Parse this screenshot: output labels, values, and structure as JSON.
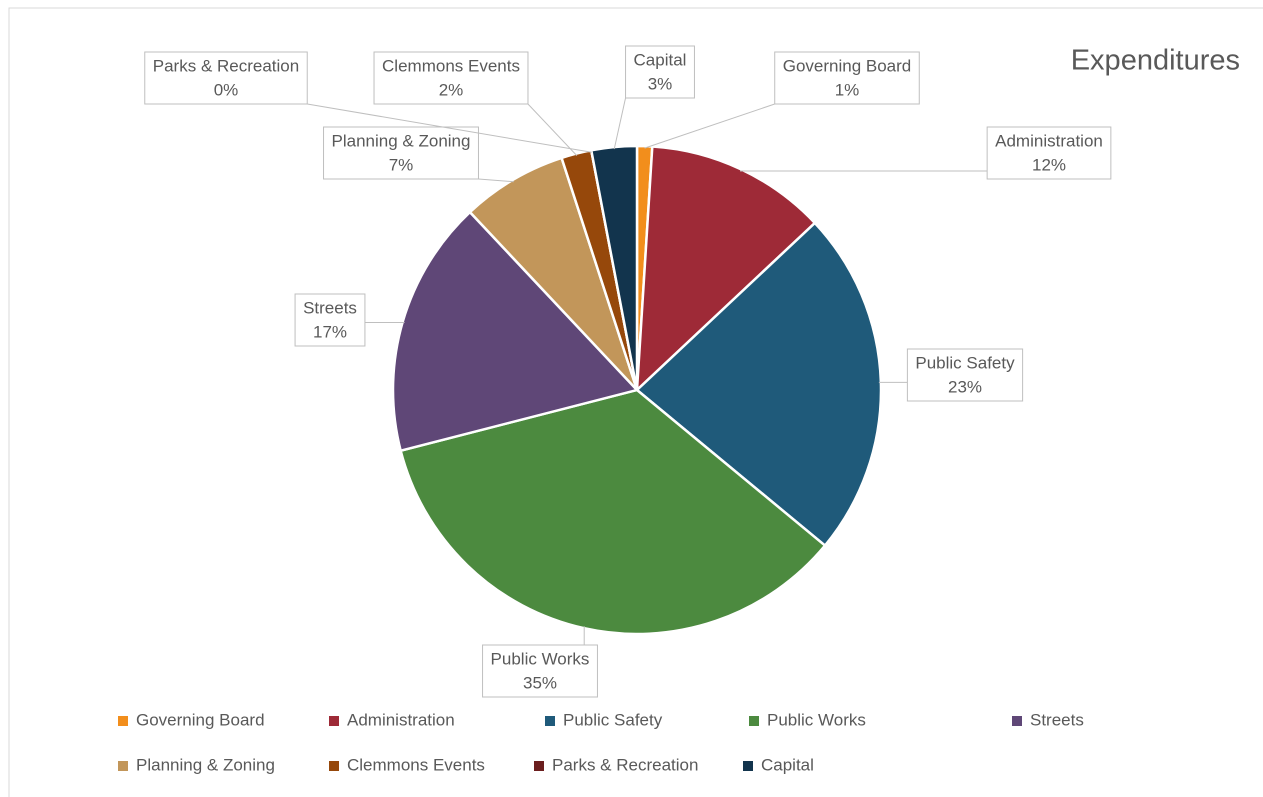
{
  "chart_data": {
    "type": "pie",
    "title": "Expenditures",
    "categories": [
      "Governing Board",
      "Administration",
      "Public Safety",
      "Public Works",
      "Streets",
      "Planning & Zoning",
      "Clemmons Events",
      "Parks & Recreation",
      "Capital"
    ],
    "values": [
      1,
      12,
      23,
      35,
      17,
      7,
      2,
      0,
      3
    ],
    "value_labels": [
      "1%",
      "12%",
      "23%",
      "35%",
      "17%",
      "7%",
      "2%",
      "0%",
      "3%"
    ],
    "colors": [
      "#f28e1c",
      "#9e2a37",
      "#1f5a7a",
      "#4c8a3f",
      "#5f4777",
      "#c2965a",
      "#96480b",
      "#6b1e1e",
      "#12344d"
    ],
    "legend": "bottom"
  }
}
